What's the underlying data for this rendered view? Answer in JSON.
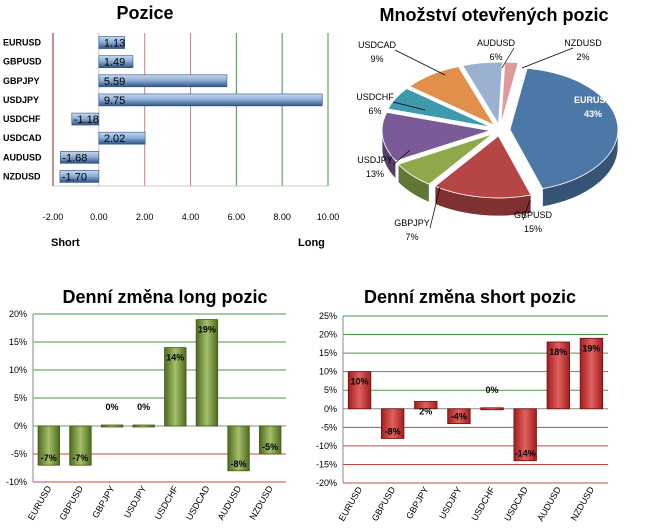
{
  "chart_data": [
    {
      "type": "bar",
      "orientation": "horizontal",
      "title": "Pozice",
      "categories": [
        "EURUSD",
        "GBPUSD",
        "GBPJPY",
        "USDJPY",
        "USDCHF",
        "USDCAD",
        "AUDUSD",
        "NZDUSD"
      ],
      "values": [
        1.13,
        1.49,
        5.59,
        9.75,
        -1.18,
        2.02,
        -1.68,
        -1.7
      ],
      "value_labels": [
        "1.13",
        "1.49",
        "5.59",
        "9.75",
        "-1.18",
        "2.02",
        "-1.68",
        "-1.70"
      ],
      "xlim": [
        -2,
        10
      ],
      "xticks": [
        "-2.00",
        "0.00",
        "2.00",
        "4.00",
        "6.00",
        "8.00",
        "10.00"
      ],
      "left_label": "Short",
      "right_label": "Long",
      "grid": "vertical"
    },
    {
      "type": "pie",
      "title": "Množství otevřených pozic",
      "slices": [
        {
          "name": "EURUSD",
          "value": 43,
          "label": "43%",
          "color": "#4c78a8"
        },
        {
          "name": "GBPUSD",
          "value": 15,
          "label": "15%",
          "color": "#b64646"
        },
        {
          "name": "GBPJPY",
          "value": 7,
          "label": "7%",
          "color": "#8fa84b"
        },
        {
          "name": "USDJPY",
          "value": 13,
          "label": "13%",
          "color": "#7a5a97"
        },
        {
          "name": "USDCHF",
          "value": 6,
          "label": "6%",
          "color": "#3f99ad"
        },
        {
          "name": "USDCAD",
          "value": 9,
          "label": "9%",
          "color": "#e0904a"
        },
        {
          "name": "AUDUSD",
          "value": 6,
          "label": "6%",
          "color": "#9bb1d2"
        },
        {
          "name": "NZDUSD",
          "value": 2,
          "label": "2%",
          "color": "#df9a9a"
        }
      ]
    },
    {
      "type": "bar",
      "title": "Denní změna long pozic",
      "categories": [
        "EURUSD",
        "GBPUSD",
        "GBPJPY",
        "USDJPY",
        "USDCHF",
        "USDCAD",
        "AUDUSD",
        "NZDUSD"
      ],
      "values": [
        -7,
        -7,
        0,
        0,
        14,
        19,
        -8,
        -5
      ],
      "value_labels": [
        "-7%",
        "-7%",
        "0%",
        "0%",
        "14%",
        "19%",
        "-8%",
        "-5%"
      ],
      "ylim": [
        -10,
        20
      ],
      "yticks": [
        "-10%",
        "-5%",
        "0%",
        "5%",
        "10%",
        "15%",
        "20%"
      ],
      "color": "#6f8a34"
    },
    {
      "type": "bar",
      "title": "Denní změna short pozic",
      "categories": [
        "EURUSD",
        "GBPUSD",
        "GBPJPY",
        "USDJPY",
        "USDCHF",
        "USDCAD",
        "AUDUSD",
        "NZDUSD"
      ],
      "values": [
        10,
        -8,
        2,
        -4,
        0,
        -14,
        18,
        19
      ],
      "value_labels": [
        "10%",
        "-8%",
        "2%",
        "-4%",
        "0%",
        "-14%",
        "18%",
        "19%"
      ],
      "ylim": [
        -20,
        25
      ],
      "yticks": [
        "-20%",
        "-15%",
        "-10%",
        "-5%",
        "0%",
        "5%",
        "10%",
        "15%",
        "20%",
        "25%"
      ],
      "color": "#c83232"
    }
  ]
}
